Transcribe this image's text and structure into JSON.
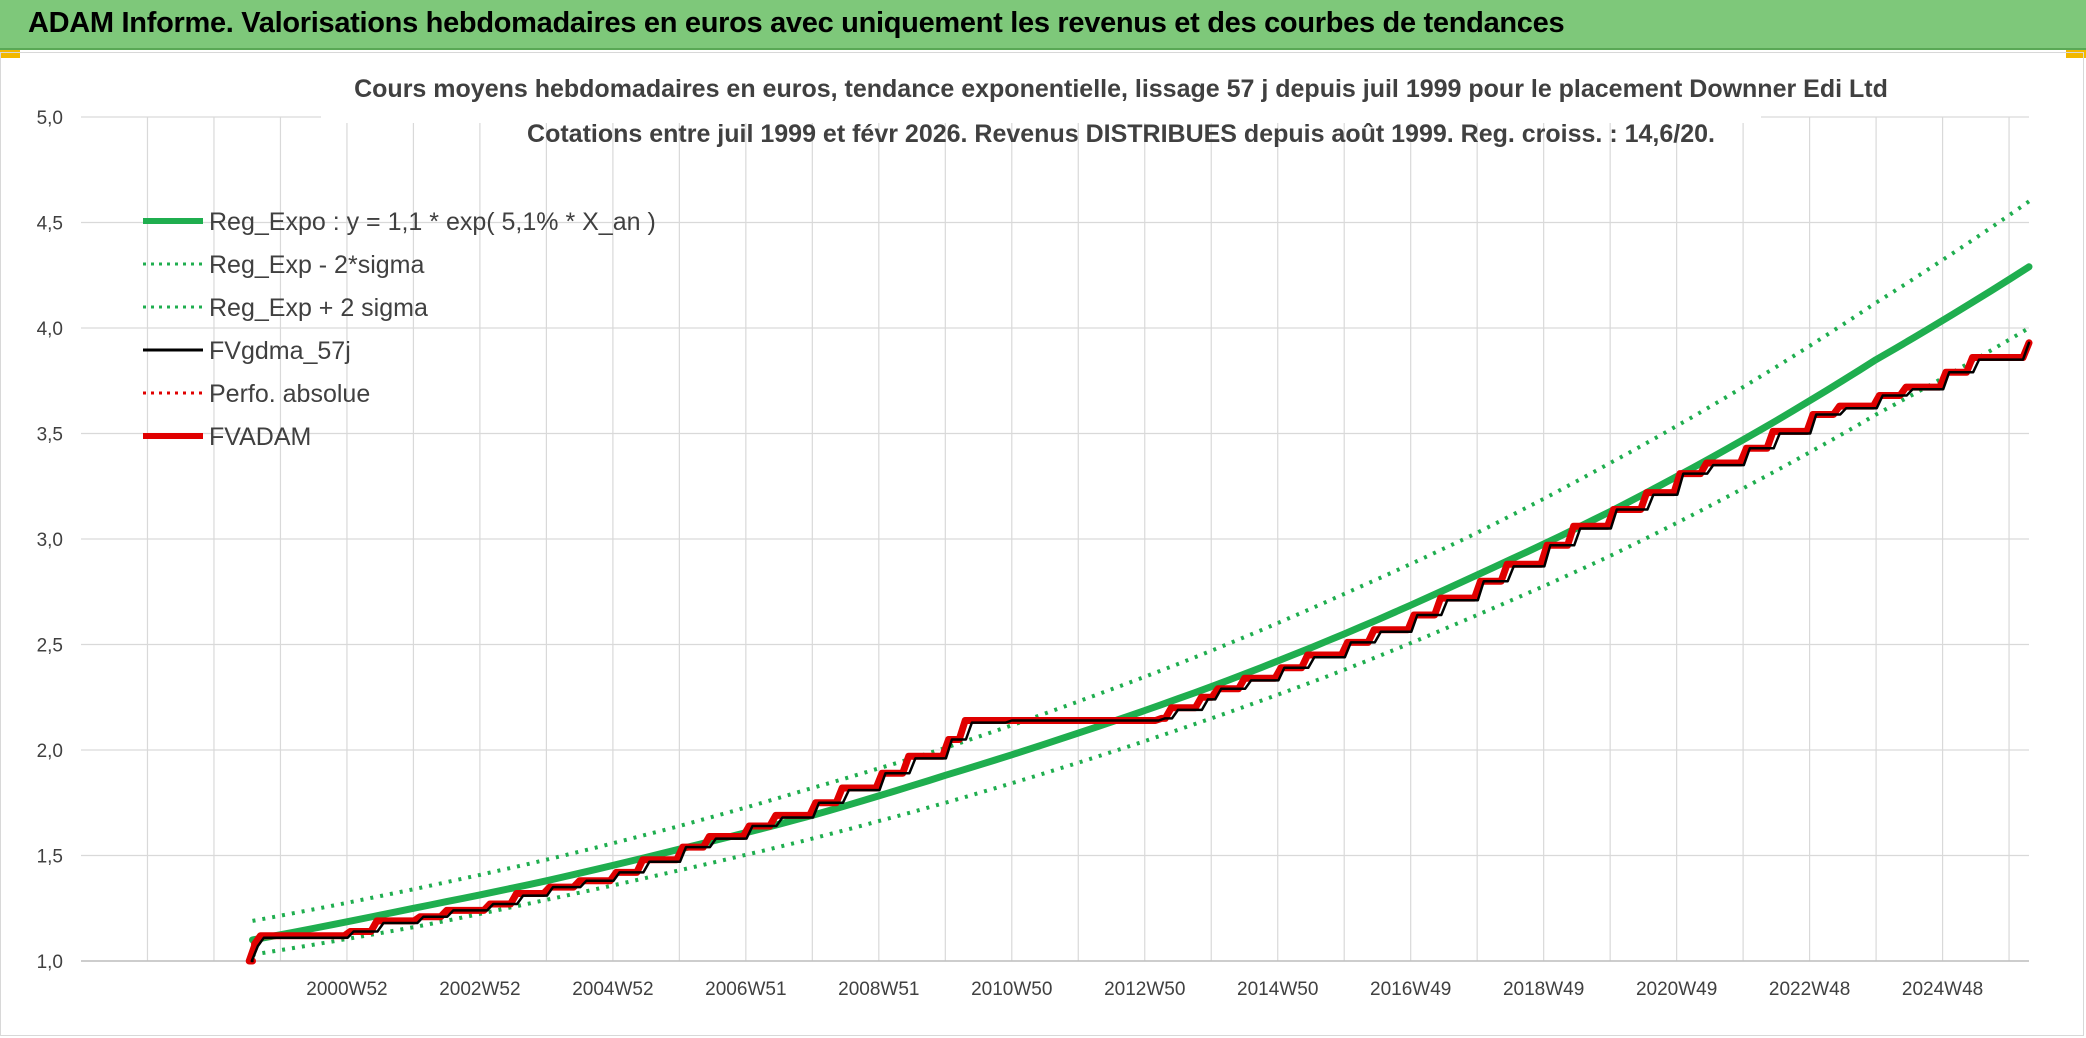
{
  "header": {
    "title": "ADAM Informe. Valorisations hebdomadaires en euros avec uniquement les revenus et des courbes de tendances"
  },
  "colors": {
    "header_bg": "#7ec87a",
    "trend": "#1fae4f",
    "sigma": "#1fae4f",
    "smoothed": "#000000",
    "perf_abs": "#e00000",
    "fvadam": "#e00000",
    "grid": "#d9d9d9"
  },
  "chart_data": {
    "type": "line",
    "title_lines": [
      "Cours moyens hebdomadaires en euros, tendance exponentielle, lissage 57 j depuis juil 1999 pour le placement Downner Edi Ltd",
      "Cotations entre juil 1999 et févr 2026. Revenus DISTRIBUES depuis août 1999. Reg. croiss. : 14,6/20."
    ],
    "ylim": [
      1.0,
      5.0
    ],
    "y_ticks": [
      "1,0",
      "1,5",
      "2,0",
      "2,5",
      "3,0",
      "3,5",
      "4,0",
      "4,5",
      "5,0"
    ],
    "x_range_years": [
      1997.0,
      2026.3
    ],
    "x_tick_labels": [
      "2000W52",
      "2002W52",
      "2004W52",
      "2006W51",
      "2008W51",
      "2010W50",
      "2012W50",
      "2014W50",
      "2016W49",
      "2018W49",
      "2020W49",
      "2022W48",
      "2024W48"
    ],
    "x_tick_years": [
      2001.0,
      2003.0,
      2005.0,
      2007.0,
      2009.0,
      2011.0,
      2013.0,
      2015.0,
      2017.0,
      2019.0,
      2021.0,
      2023.0,
      2025.0
    ],
    "grid": true,
    "legend_position": "top-left",
    "legend": [
      {
        "label": "Reg_Expo : y = 1,1 * exp( 5,1% *  X_an )",
        "style": "solid-thick",
        "color": "#1fae4f"
      },
      {
        "label": "Reg_Exp - 2*sigma",
        "style": "dotted",
        "color": "#1fae4f"
      },
      {
        "label": "Reg_Exp + 2 sigma",
        "style": "dotted",
        "color": "#1fae4f"
      },
      {
        "label": "FVgdma_57j",
        "style": "solid",
        "color": "#000000"
      },
      {
        "label": "Perfo. absolue",
        "style": "dotted",
        "color": "#e00000"
      },
      {
        "label": "FVADAM",
        "style": "solid-thick",
        "color": "#e00000"
      }
    ],
    "series": [
      {
        "name": "Reg_Expo : y = 1,1 * exp( 5,1% *  X_an )",
        "x": [
          1999.58,
          2002.0,
          2004.0,
          2006.0,
          2008.0,
          2010.0,
          2012.0,
          2014.0,
          2016.0,
          2018.0,
          2020.0,
          2022.0,
          2024.0,
          2026.3
        ],
        "y": [
          1.1,
          1.25,
          1.38,
          1.53,
          1.69,
          1.88,
          2.08,
          2.3,
          2.55,
          2.83,
          3.13,
          3.47,
          3.85,
          4.29
        ]
      },
      {
        "name": "Reg_Exp - 2*sigma",
        "x": [
          1999.58,
          2002.0,
          2004.0,
          2006.0,
          2008.0,
          2010.0,
          2012.0,
          2014.0,
          2016.0,
          2018.0,
          2020.0,
          2022.0,
          2024.0,
          2026.3
        ],
        "y": [
          1.03,
          1.16,
          1.29,
          1.43,
          1.58,
          1.75,
          1.94,
          2.15,
          2.38,
          2.64,
          2.92,
          3.24,
          3.59,
          4.0
        ]
      },
      {
        "name": "Reg_Exp + 2 sigma",
        "x": [
          1999.58,
          2002.0,
          2004.0,
          2006.0,
          2008.0,
          2010.0,
          2012.0,
          2014.0,
          2016.0,
          2018.0,
          2020.0,
          2022.0,
          2024.0,
          2026.3
        ],
        "y": [
          1.19,
          1.34,
          1.48,
          1.64,
          1.82,
          2.01,
          2.23,
          2.47,
          2.74,
          3.03,
          3.36,
          3.72,
          4.12,
          4.6
        ]
      },
      {
        "name": "FVADAM",
        "x": [
          1999.58,
          1999.62,
          1999.7,
          2001.05,
          2001.45,
          2002.1,
          2002.5,
          2003.15,
          2003.55,
          2004.05,
          2004.5,
          2005.05,
          2005.45,
          2006.05,
          2006.45,
          2007.05,
          2007.45,
          2008.05,
          2008.45,
          2009.05,
          2009.45,
          2010.05,
          2010.3,
          2011.0,
          2012.0,
          2013.0,
          2013.25,
          2013.4,
          2013.85,
          2014.1,
          2014.5,
          2015.05,
          2015.45,
          2016.05,
          2016.45,
          2017.05,
          2017.45,
          2018.05,
          2018.45,
          2019.05,
          2019.45,
          2020.05,
          2020.55,
          2021.05,
          2021.45,
          2022.05,
          2022.45,
          2023.05,
          2023.45,
          2024.05,
          2024.45,
          2025.05,
          2025.45,
          2026.3
        ],
        "y": [
          1.0,
          1.08,
          1.12,
          1.14,
          1.19,
          1.21,
          1.24,
          1.27,
          1.32,
          1.35,
          1.38,
          1.42,
          1.48,
          1.54,
          1.59,
          1.64,
          1.69,
          1.75,
          1.82,
          1.89,
          1.97,
          2.05,
          2.14,
          2.14,
          2.14,
          2.14,
          2.15,
          2.2,
          2.25,
          2.29,
          2.34,
          2.39,
          2.45,
          2.51,
          2.57,
          2.64,
          2.72,
          2.8,
          2.88,
          2.97,
          3.06,
          3.14,
          3.22,
          3.31,
          3.36,
          3.43,
          3.51,
          3.59,
          3.63,
          3.68,
          3.72,
          3.79,
          3.86,
          3.93
        ]
      },
      {
        "name": "FVgdma_57j",
        "x": [
          1999.58,
          1999.66,
          1999.75,
          2001.1,
          2001.55,
          2002.15,
          2002.6,
          2003.2,
          2003.65,
          2004.1,
          2004.6,
          2005.1,
          2005.55,
          2006.1,
          2006.55,
          2007.1,
          2007.55,
          2008.1,
          2008.55,
          2009.1,
          2009.55,
          2010.1,
          2010.4,
          2011.0,
          2012.0,
          2013.0,
          2013.3,
          2013.5,
          2013.95,
          2014.15,
          2014.6,
          2015.1,
          2015.55,
          2016.1,
          2016.55,
          2017.1,
          2017.55,
          2018.1,
          2018.55,
          2019.1,
          2019.55,
          2020.1,
          2020.65,
          2021.1,
          2021.55,
          2022.1,
          2022.55,
          2023.1,
          2023.55,
          2024.1,
          2024.55,
          2025.1,
          2025.55,
          2026.3
        ],
        "y": [
          1.0,
          1.07,
          1.11,
          1.14,
          1.18,
          1.21,
          1.24,
          1.27,
          1.31,
          1.35,
          1.38,
          1.42,
          1.47,
          1.54,
          1.58,
          1.64,
          1.68,
          1.75,
          1.81,
          1.89,
          1.96,
          2.05,
          2.13,
          2.14,
          2.14,
          2.14,
          2.15,
          2.19,
          2.24,
          2.29,
          2.33,
          2.39,
          2.44,
          2.51,
          2.56,
          2.64,
          2.71,
          2.8,
          2.87,
          2.97,
          3.05,
          3.14,
          3.21,
          3.31,
          3.35,
          3.43,
          3.5,
          3.59,
          3.62,
          3.68,
          3.71,
          3.79,
          3.85,
          3.93
        ]
      }
    ]
  }
}
